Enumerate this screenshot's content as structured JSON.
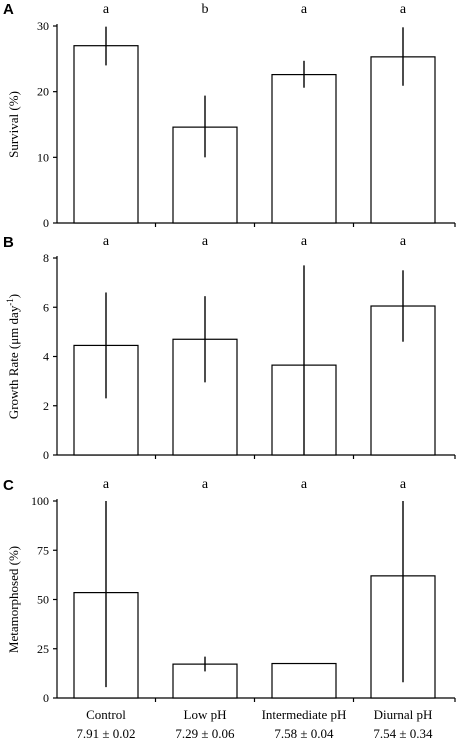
{
  "chart_data": [
    {
      "panel": "A",
      "type": "bar",
      "ylabel": "Survival (%)",
      "ylabel_superscript": "",
      "ylabel_suffix": "",
      "ylim": [
        0,
        30
      ],
      "yticks": [
        0,
        10,
        20,
        30
      ],
      "categories": [
        "Control",
        "Low pH",
        "Intermediate pH",
        "Diurnal pH"
      ],
      "values": [
        27.0,
        14.6,
        22.6,
        25.3
      ],
      "err_low": [
        24.0,
        10.0,
        20.6,
        20.9
      ],
      "err_high": [
        29.9,
        19.4,
        24.7,
        29.8
      ],
      "letters": [
        "a",
        "b",
        "a",
        "a"
      ]
    },
    {
      "panel": "B",
      "type": "bar",
      "ylabel": "Growth Rate (μm day",
      "ylabel_superscript": "-1",
      "ylabel_suffix": ")",
      "ylim": [
        0,
        8
      ],
      "yticks": [
        0,
        2,
        4,
        6,
        8
      ],
      "categories": [
        "Control",
        "Low pH",
        "Intermediate pH",
        "Diurnal pH"
      ],
      "values": [
        4.45,
        4.7,
        3.65,
        6.05
      ],
      "err_low": [
        2.3,
        2.95,
        0.0,
        4.6
      ],
      "err_high": [
        6.6,
        6.45,
        7.7,
        7.5
      ],
      "letters": [
        "a",
        "a",
        "a",
        "a"
      ]
    },
    {
      "panel": "C",
      "type": "bar",
      "ylabel": "Metamorphosed (%)",
      "ylabel_superscript": "",
      "ylabel_suffix": "",
      "ylim": [
        0,
        100
      ],
      "yticks": [
        0,
        25,
        50,
        75,
        100
      ],
      "categories": [
        "Control",
        "Low pH",
        "Intermediate pH",
        "Diurnal pH"
      ],
      "values": [
        53.5,
        17.2,
        17.5,
        62.0
      ],
      "err_low": [
        5.5,
        13.5,
        17.5,
        8.0
      ],
      "err_high": [
        100,
        21.0,
        17.5,
        100
      ],
      "letters": [
        "a",
        "a",
        "a",
        "a"
      ]
    }
  ],
  "x_axis": {
    "categories": [
      "Control",
      "Low pH",
      "Intermediate pH",
      "Diurnal pH"
    ],
    "ph_values": [
      "7.91 ± 0.02",
      "7.29 ± 0.06",
      "7.58 ± 0.04",
      "7.54 ± 0.34"
    ]
  }
}
